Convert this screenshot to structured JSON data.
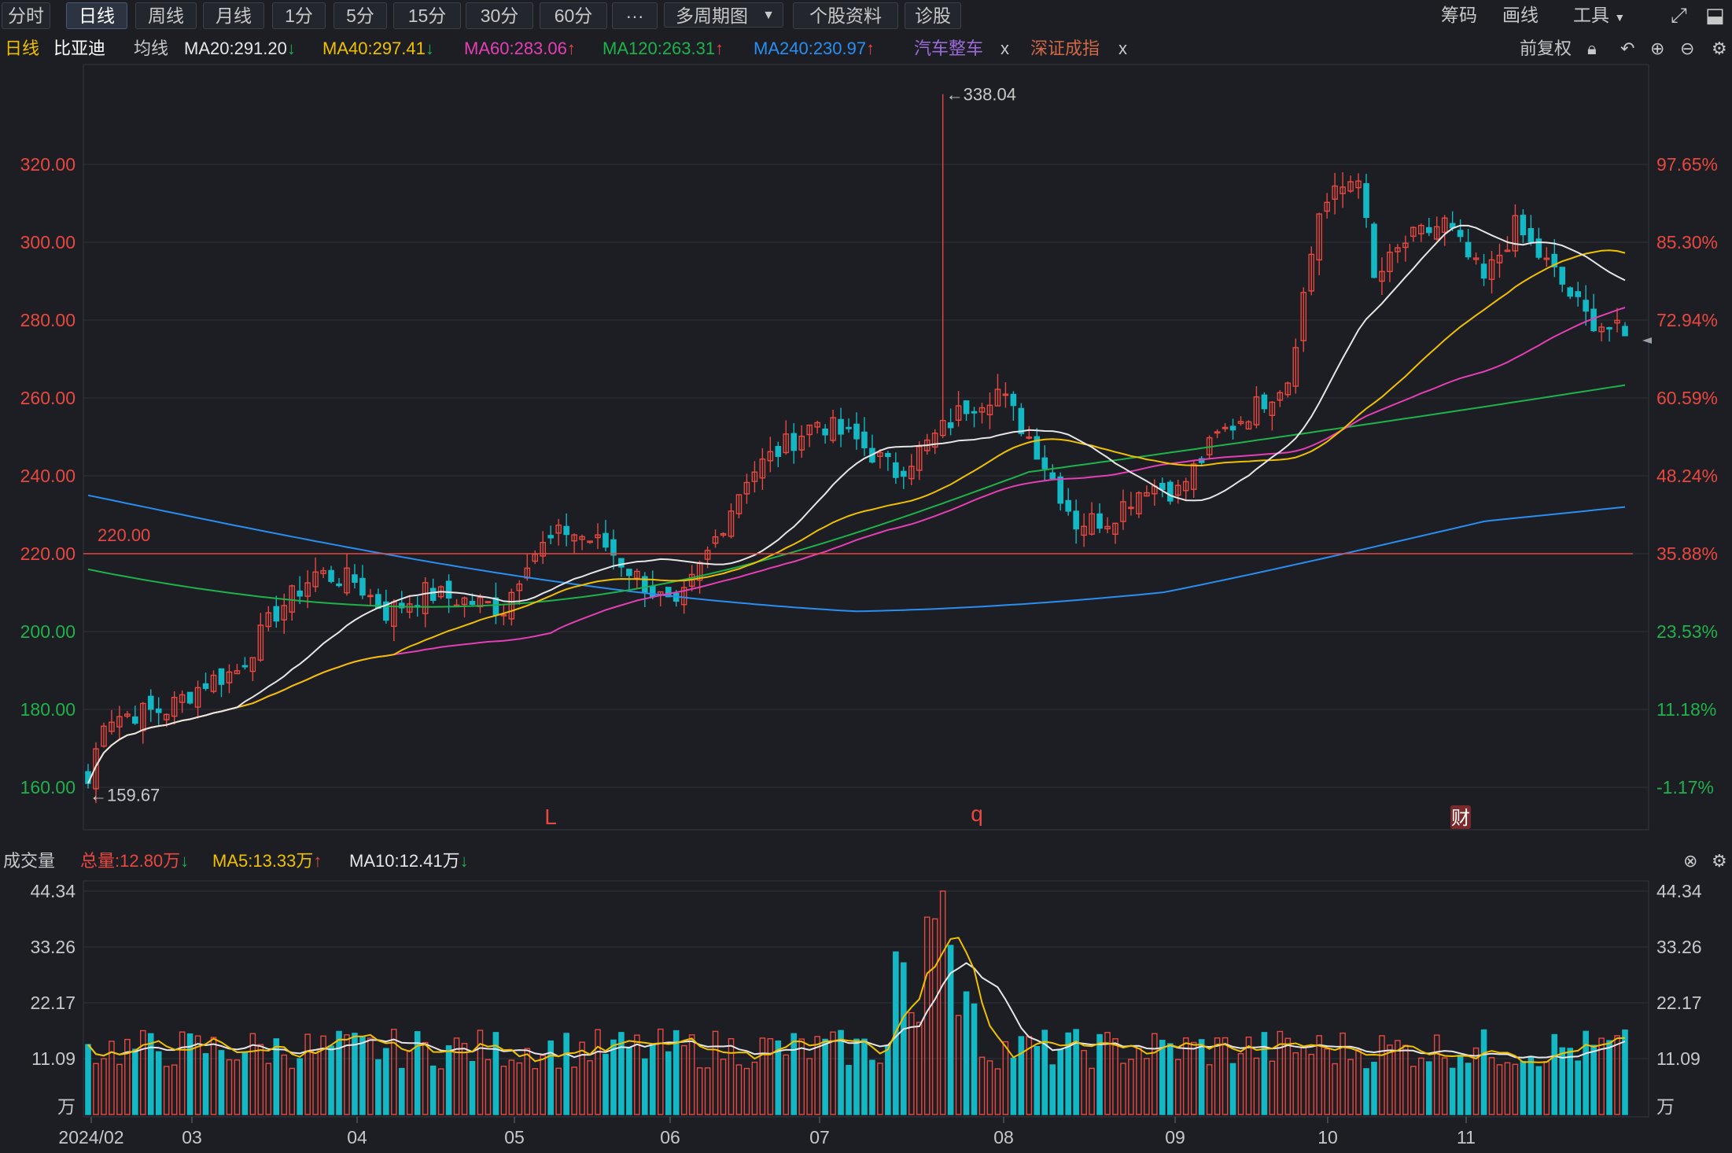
{
  "toolbar": {
    "tabs": [
      "分时",
      "日线",
      "周线",
      "月线",
      "1分",
      "5分",
      "15分",
      "30分",
      "60分",
      "···",
      "多周期图",
      "个股资料",
      "诊股"
    ],
    "active_tab": "日线",
    "right_tools": [
      "筹码",
      "画线",
      "工具"
    ]
  },
  "info": {
    "period": "日线",
    "stock": "比亚迪",
    "ma_label": "均线",
    "ma20": "MA20:291.20",
    "ma40": "MA40:297.41",
    "ma60": "MA60:283.06",
    "ma120": "MA120:263.31",
    "ma240": "MA240:230.97",
    "ref1": "汽车整车",
    "ref2": "深证成指",
    "close_x": "x",
    "adjust": "前复权"
  },
  "volume_info": {
    "title": "成交量",
    "total": "总量:12.80万",
    "ma5": "MA5:13.33万",
    "ma10": "MA10:12.41万"
  },
  "markers": {
    "high_label": "←338.04",
    "low_label": "←159.67",
    "line_label": "220.00",
    "event1": "L",
    "event2": "q",
    "event3": "财"
  },
  "colors": {
    "up": "#e8483f",
    "down": "#14b8c4",
    "ma20": "#e6e6e6",
    "ma40": "#f0c000",
    "ma60": "#e43fb4",
    "ma120": "#1fb24a",
    "ma240": "#2a8ef0",
    "ref1": "#9b6cd8",
    "ref2": "#d06848"
  },
  "chart_data": [
    {
      "type": "candlestick",
      "title": "比亚迪 日线",
      "ylim": [
        155,
        345
      ],
      "y_ticks": [
        "320.00",
        "300.00",
        "280.00",
        "260.00",
        "240.00",
        "220.00",
        "200.00",
        "180.00",
        "160.00"
      ],
      "y_ticks_right": [
        "97.65%",
        "85.30%",
        "72.94%",
        "60.59%",
        "48.24%",
        "35.88%",
        "23.53%",
        "11.18%",
        "-1.17%"
      ],
      "x_labels": [
        "2024/02",
        "03",
        "04",
        "05",
        "06",
        "07",
        "08",
        "09",
        "10",
        "11"
      ],
      "horizontal_line": 220.0,
      "high": 338.04,
      "low": 159.67,
      "anchors": [
        {
          "date": "2024/02/05",
          "close": 161
        },
        {
          "date": "2024/02/08",
          "close": 178
        },
        {
          "date": "2024/02/20",
          "close": 180
        },
        {
          "date": "2024/02/28",
          "close": 187
        },
        {
          "date": "2024/03/05",
          "close": 190
        },
        {
          "date": "2024/03/12",
          "close": 205
        },
        {
          "date": "2024/03/20",
          "close": 215
        },
        {
          "date": "2024/03/28",
          "close": 213
        },
        {
          "date": "2024/04/03",
          "close": 205
        },
        {
          "date": "2024/04/10",
          "close": 210
        },
        {
          "date": "2024/04/18",
          "close": 208
        },
        {
          "date": "2024/04/25",
          "close": 206
        },
        {
          "date": "2024/04/30",
          "close": 219
        },
        {
          "date": "2024/05/08",
          "close": 226
        },
        {
          "date": "2024/05/15",
          "close": 222
        },
        {
          "date": "2024/05/22",
          "close": 214
        },
        {
          "date": "2024/05/29",
          "close": 205
        },
        {
          "date": "2024/06/04",
          "close": 220
        },
        {
          "date": "2024/06/12",
          "close": 240
        },
        {
          "date": "2024/06/20",
          "close": 248
        },
        {
          "date": "2024/06/26",
          "close": 254
        },
        {
          "date": "2024/07/03",
          "close": 249
        },
        {
          "date": "2024/07/10",
          "close": 241
        },
        {
          "date": "2024/07/17",
          "close": 248
        },
        {
          "date": "2024/07/24",
          "close": 258
        },
        {
          "date": "2024/07/31",
          "close": 262
        },
        {
          "date": "2024/08/07",
          "close": 247
        },
        {
          "date": "2024/08/14",
          "close": 228
        },
        {
          "date": "2024/08/21",
          "close": 229
        },
        {
          "date": "2024/08/28",
          "close": 238
        },
        {
          "date": "2024/09/04",
          "close": 236
        },
        {
          "date": "2024/09/11",
          "close": 250
        },
        {
          "date": "2024/09/18",
          "close": 258
        },
        {
          "date": "2024/09/25",
          "close": 265
        },
        {
          "date": "2024/09/30",
          "close": 308
        },
        {
          "date": "2024/10/08",
          "close": 318
        },
        {
          "date": "2024/10/11",
          "close": 290
        },
        {
          "date": "2024/10/18",
          "close": 300
        },
        {
          "date": "2024/10/25",
          "close": 305
        },
        {
          "date": "2024/11/01",
          "close": 290
        },
        {
          "date": "2024/11/08",
          "close": 304
        },
        {
          "date": "2024/11/15",
          "close": 292
        },
        {
          "date": "2024/11/22",
          "close": 281
        },
        {
          "date": "2024/11/29",
          "close": 276
        }
      ],
      "moving_averages": [
        {
          "name": "MA20",
          "last": 291.2
        },
        {
          "name": "MA40",
          "last": 297.41
        },
        {
          "name": "MA60",
          "last": 283.06
        },
        {
          "name": "MA120",
          "last": 263.31
        },
        {
          "name": "MA240",
          "last": 230.97
        }
      ]
    },
    {
      "type": "bar",
      "title": "成交量",
      "ylim": [
        0,
        44.34
      ],
      "y_ticks": [
        "44.34",
        "33.26",
        "22.17",
        "11.09",
        "万"
      ],
      "unit": "万",
      "total": 12.8,
      "ma5_last": 13.33,
      "ma10_last": 12.41
    }
  ]
}
